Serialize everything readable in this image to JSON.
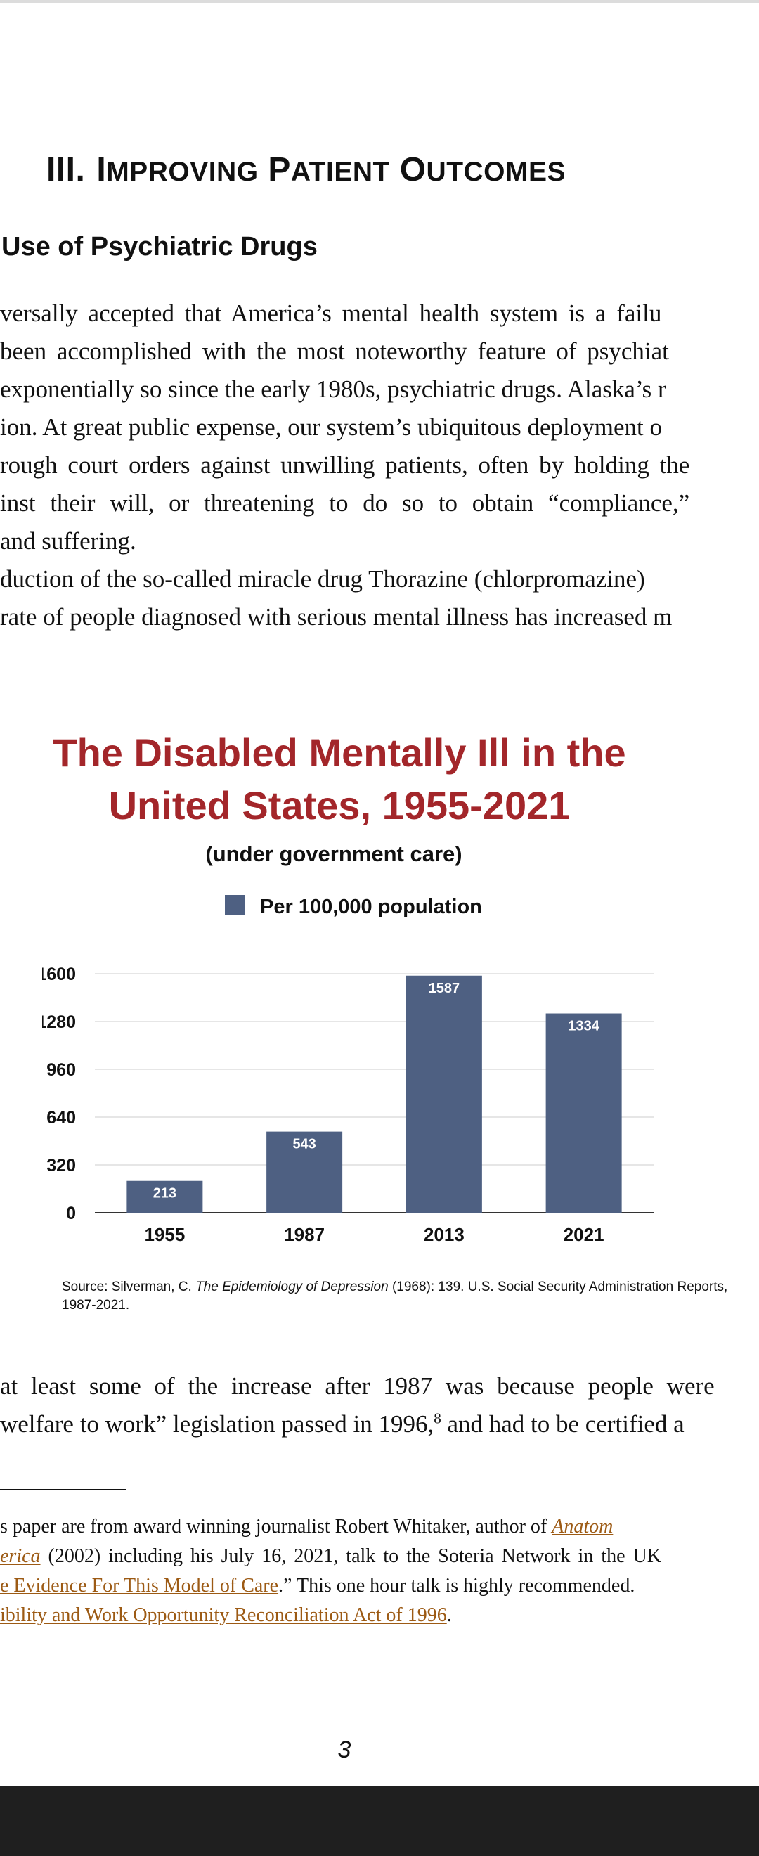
{
  "section": {
    "roman": "III.",
    "words": [
      [
        "I",
        "MPROVING"
      ],
      [
        "P",
        "ATIENT"
      ],
      [
        "O",
        "UTCOMES"
      ]
    ]
  },
  "subheading": "Use of Psychiatric Drugs",
  "paragraph_lines": [
    "versally accepted that America’s mental health system is a failu",
    " been accomplished with the most noteworthy feature of psychiat",
    " exponentially so since the early 1980s, psychiatric drugs.  Alaska’s r",
    "ion.  At great public expense, our system’s ubiquitous deployment o",
    "rough court orders against unwilling patients, often by holding the",
    "inst their will, or threatening to do so to obtain “compliance,”",
    "and suffering.",
    "duction of the so-called miracle drug Thorazine (chlorpromazine)",
    "rate of people diagnosed with serious mental illness has increased m"
  ],
  "chart_data": {
    "type": "bar",
    "title": [
      "The Disabled Mentally Ill in the",
      "United States, 1955-2021"
    ],
    "subtitle": "(under government care)",
    "legend": "Per 100,000 population",
    "categories": [
      "1955",
      "1987",
      "2013",
      "2021"
    ],
    "values": [
      213,
      543,
      1587,
      1334
    ],
    "yticks": [
      "1600",
      "1280",
      "960",
      "640",
      "320",
      "0"
    ],
    "ylim": [
      0,
      1600
    ],
    "bar_color": "#4e6082",
    "grid": true,
    "legend_position": "top-center"
  },
  "source": {
    "prefix": "Source: Silverman, C. ",
    "italic": "The Epidemiology of Depression",
    "suffix": " (1968): 139. U.S. Social Security Administration Reports, 1987-2021."
  },
  "after_lines": [
    "at least some of the increase after 1987 was because people were",
    "welfare to work” legislation passed in 1996,"
  ],
  "after_sup": "8",
  "after_tail": " and had to be certified a",
  "footnotes": {
    "l1_text": "s paper  are from award winning journalist Robert Whitaker, author of ",
    "l1_link": "Anatom",
    "l2_link": "erica",
    "l2_text": " (2002) including his July 16, 2021, talk to the Soteria Network in the UK",
    "l3_link": "e Evidence For This Model of Care",
    "l3_text": ".”  This one hour talk is highly recommended.",
    "l4_link": "ibility and Work Opportunity Reconciliation Act of 1996",
    "l4_text": "."
  },
  "page_number": "3"
}
